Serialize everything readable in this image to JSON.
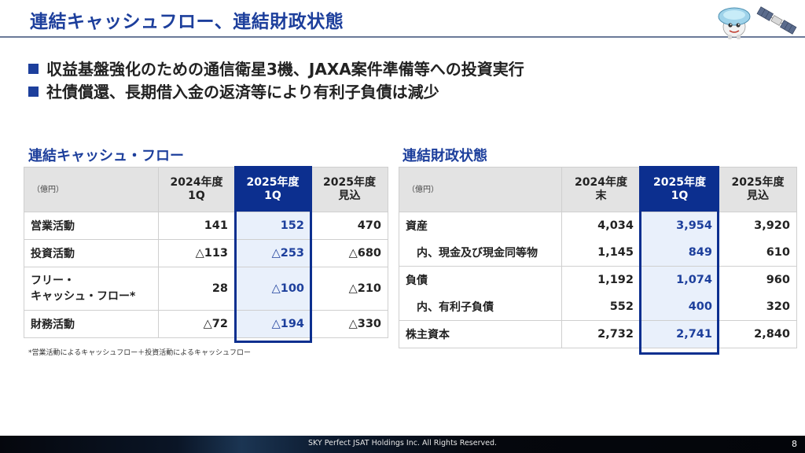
{
  "slide": {
    "title": "連結キャッシュフロー、連結財政状態",
    "bullets": [
      "収益基盤強化のための通信衛星3機、JAXA案件準備等への投資実行",
      "社債償還、長期借入金の返済等により有利子負債は減少"
    ]
  },
  "cash_flow": {
    "title": "連結キャッシュ・フロー",
    "unit": "（億円）",
    "headers": [
      [
        "2024年度",
        "1Q"
      ],
      [
        "2025年度",
        "1Q"
      ],
      [
        "2025年度",
        "見込"
      ]
    ],
    "rows": [
      {
        "label": "営業活動",
        "values": [
          "141",
          "152",
          "470"
        ]
      },
      {
        "label": "投資活動",
        "values": [
          "△113",
          "△253",
          "△680"
        ]
      },
      {
        "label_lines": [
          "フリー・",
          "キャッシュ・フロー*"
        ],
        "values": [
          "28",
          "△100",
          "△210"
        ]
      },
      {
        "label": "財務活動",
        "values": [
          "△72",
          "△194",
          "△330"
        ]
      }
    ],
    "footnote": "*営業活動によるキャッシュフロー＋投資活動によるキャッシュフロー"
  },
  "balance_sheet": {
    "title": "連結財政状態",
    "unit": "（億円）",
    "headers": [
      [
        "2024年度",
        "末"
      ],
      [
        "2025年度",
        "1Q"
      ],
      [
        "2025年度",
        "見込"
      ]
    ],
    "rows": [
      {
        "label": "資産",
        "values": [
          "4,034",
          "3,954",
          "3,920"
        ]
      },
      {
        "label": "内、現金及び現金同等物",
        "values": [
          "1,145",
          "849",
          "610"
        ]
      },
      {
        "label": "負債",
        "values": [
          "1,192",
          "1,074",
          "960"
        ]
      },
      {
        "label": "内、有利子負債",
        "values": [
          "552",
          "400",
          "320"
        ]
      },
      {
        "label": "株主資本",
        "values": [
          "2,732",
          "2,741",
          "2,840"
        ]
      }
    ]
  },
  "footer": {
    "copyright": "SKY Perfect JSAT Holdings Inc. All Rights Reserved.",
    "page_number": "8"
  }
}
